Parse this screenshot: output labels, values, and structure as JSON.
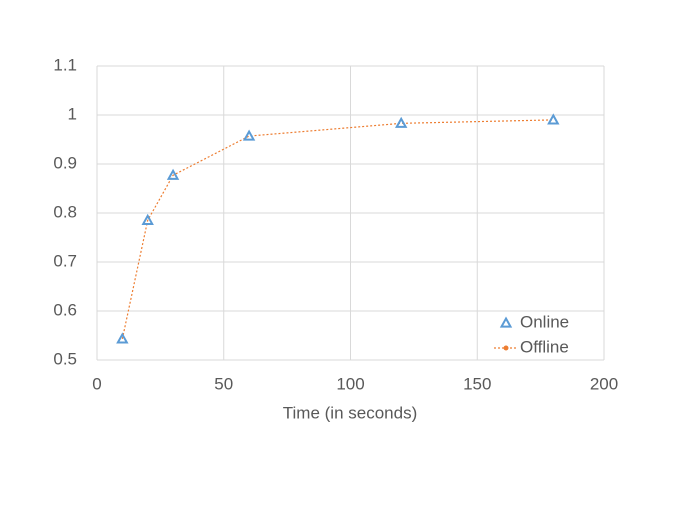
{
  "chart_data": {
    "type": "scatter",
    "x_label": "Time (in seconds)",
    "x": [
      10,
      20,
      30,
      60,
      120,
      180
    ],
    "series": [
      {
        "name": "Online",
        "color": "#5b9bd5",
        "marker": "triangle",
        "values": [
          0.543,
          0.785,
          0.877,
          0.957,
          0.983,
          0.99
        ]
      },
      {
        "name": "Offline",
        "color": "#ed7d31",
        "marker": "dotted-line",
        "values": [
          0.543,
          0.785,
          0.877,
          0.957,
          0.983,
          0.99
        ]
      }
    ],
    "xlim": [
      0,
      200
    ],
    "xticks": [
      0,
      50,
      100,
      150,
      200
    ],
    "ylim": [
      0.5,
      1.1
    ],
    "yticks": [
      0.5,
      0.6,
      0.7,
      0.8,
      0.9,
      1,
      1.1
    ],
    "grid": true,
    "legend": "bottom-right"
  }
}
